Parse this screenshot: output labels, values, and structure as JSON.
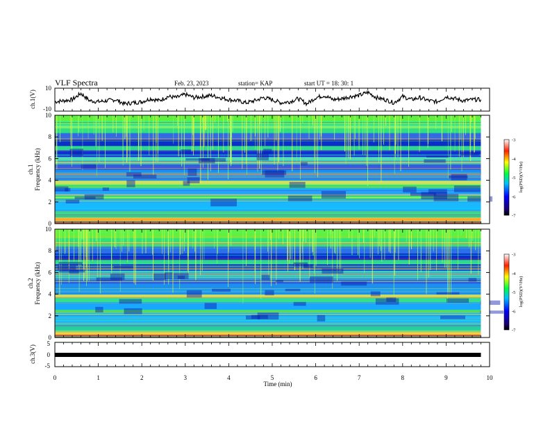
{
  "header": {
    "title": "VLF Spectra",
    "date": "Feb. 23, 2023",
    "station": "station= KAP",
    "start": "start  UT =   18: 30: 1"
  },
  "chart_data": [
    {
      "type": "line",
      "panel": "ch1-waveform",
      "ylabel": "ch.1(V)",
      "ylim": [
        -10,
        10
      ],
      "yticks": [
        "10",
        "-10"
      ],
      "x_range_min": [
        0,
        9.8
      ],
      "series": [
        {
          "values_x_min": [
            0,
            0.2,
            0.4,
            0.6,
            0.8,
            1,
            1.2,
            1.4,
            1.6,
            1.8,
            2,
            2.2,
            2.4,
            2.6,
            2.8,
            3,
            3.2,
            3.4,
            3.6,
            3.8,
            4,
            4.2,
            4.4,
            4.6,
            4.8,
            5,
            5.2,
            5.4,
            5.6,
            5.8,
            6,
            6.2,
            6.4,
            6.6,
            6.8,
            7,
            7.2,
            7.4,
            7.6,
            7.8,
            8,
            8.2,
            8.4,
            8.6,
            8.8,
            9,
            9.2,
            9.4,
            9.6,
            9.8
          ],
          "values_y_V": [
            -2,
            -1,
            0,
            6,
            -1,
            -2,
            -1,
            0,
            -4,
            -3,
            -2,
            1,
            -1,
            3,
            2,
            5,
            2,
            3,
            4,
            2,
            0,
            -1,
            -3,
            -1,
            2,
            0,
            -3,
            -2,
            1,
            -4,
            2,
            4,
            0,
            1,
            3,
            4,
            7,
            2,
            0,
            -3,
            3,
            0,
            2,
            -1,
            -2,
            3,
            1,
            -1,
            0,
            0
          ]
        }
      ]
    },
    {
      "type": "heatmap",
      "panel": "ch1-spectrogram",
      "ylabel": "ch.1\nFrequency (kHz)",
      "ylim": [
        0,
        10
      ],
      "yticks": [
        "10",
        "8",
        "6",
        "4",
        "2",
        "0"
      ],
      "colorbar": {
        "label": "log(PSD)(V²/Hz)",
        "range": [
          -7,
          -3
        ],
        "ticks": [
          "-3",
          "-4",
          "-5",
          "-6",
          "-7"
        ]
      }
    },
    {
      "type": "heatmap",
      "panel": "ch2-spectrogram",
      "ylabel": "ch.2\nFrequency (kHz)",
      "ylim": [
        0,
        10
      ],
      "yticks": [
        "10",
        "8",
        "6",
        "4",
        "2",
        "0"
      ],
      "colorbar": {
        "label": "log(PSD)(V²/Hz)",
        "range": [
          -7,
          -3
        ],
        "ticks": [
          "-3",
          "-4",
          "-5",
          "-6",
          "-7"
        ]
      }
    },
    {
      "type": "line",
      "panel": "ch3-waveform",
      "ylabel": "ch.3(V)",
      "ylim": [
        -5,
        5
      ],
      "yticks": [
        "5",
        "0",
        "-5"
      ],
      "series": [
        {
          "values_x_min": [
            0,
            9.8
          ],
          "values_y_V": [
            0,
            0
          ]
        }
      ]
    }
  ],
  "xaxis": {
    "label": "Time  (min)",
    "ticks": [
      "0",
      "1",
      "2",
      "3",
      "4",
      "5",
      "6",
      "7",
      "8",
      "9",
      "10"
    ],
    "range": [
      0,
      10
    ]
  }
}
